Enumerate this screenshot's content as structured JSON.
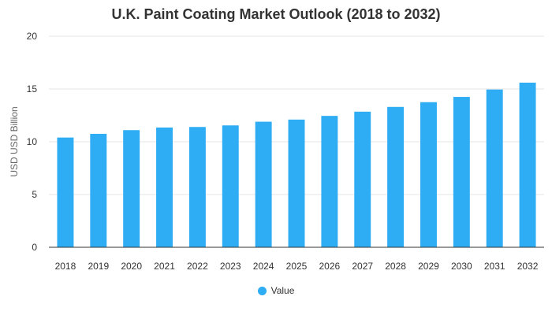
{
  "chart_data": {
    "type": "bar",
    "title": "U.K. Paint Coating Market Outlook (2018 to 2032)",
    "xlabel": "",
    "ylabel": "USD USD Billion",
    "categories": [
      "2018",
      "2019",
      "2020",
      "2021",
      "2022",
      "2023",
      "2024",
      "2025",
      "2026",
      "2027",
      "2028",
      "2029",
      "2030",
      "2031",
      "2032"
    ],
    "series": [
      {
        "name": "Value",
        "values": [
          10.4,
          10.75,
          11.1,
          11.35,
          11.4,
          11.55,
          11.9,
          12.1,
          12.45,
          12.85,
          13.3,
          13.75,
          14.25,
          14.95,
          15.6
        ]
      }
    ],
    "ylim": [
      0,
      20
    ],
    "yticks": [
      0,
      5,
      10,
      15,
      20
    ],
    "grid": true,
    "legend_position": "bottom",
    "bar_color": "#2EADF4"
  }
}
